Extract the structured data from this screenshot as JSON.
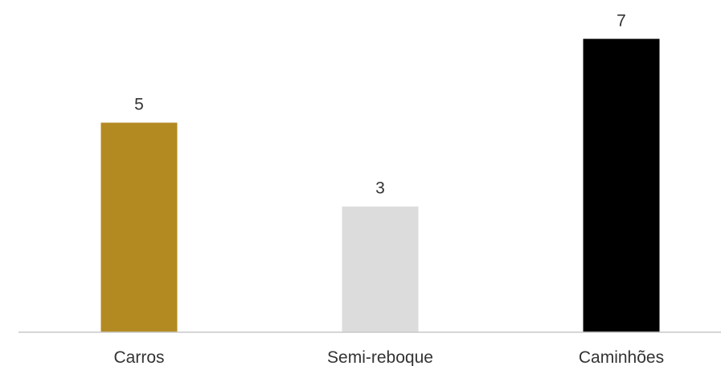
{
  "chart_data": {
    "type": "bar",
    "title": "",
    "xlabel": "",
    "ylabel": "",
    "categories": [
      "Carros",
      "Semi-reboque",
      "Caminhões"
    ],
    "values": [
      5,
      3,
      7
    ],
    "value_labels": [
      "5",
      "3",
      "7"
    ],
    "bar_colors": [
      "#b38a22",
      "#dcdcdc",
      "#000000"
    ],
    "ylim": [
      0,
      7
    ],
    "grid": false,
    "legend": "none",
    "data_labels": "above-bars"
  },
  "colors": {
    "axis_line": "#c8c8c8",
    "label_text": "#333333",
    "background": "#ffffff"
  }
}
